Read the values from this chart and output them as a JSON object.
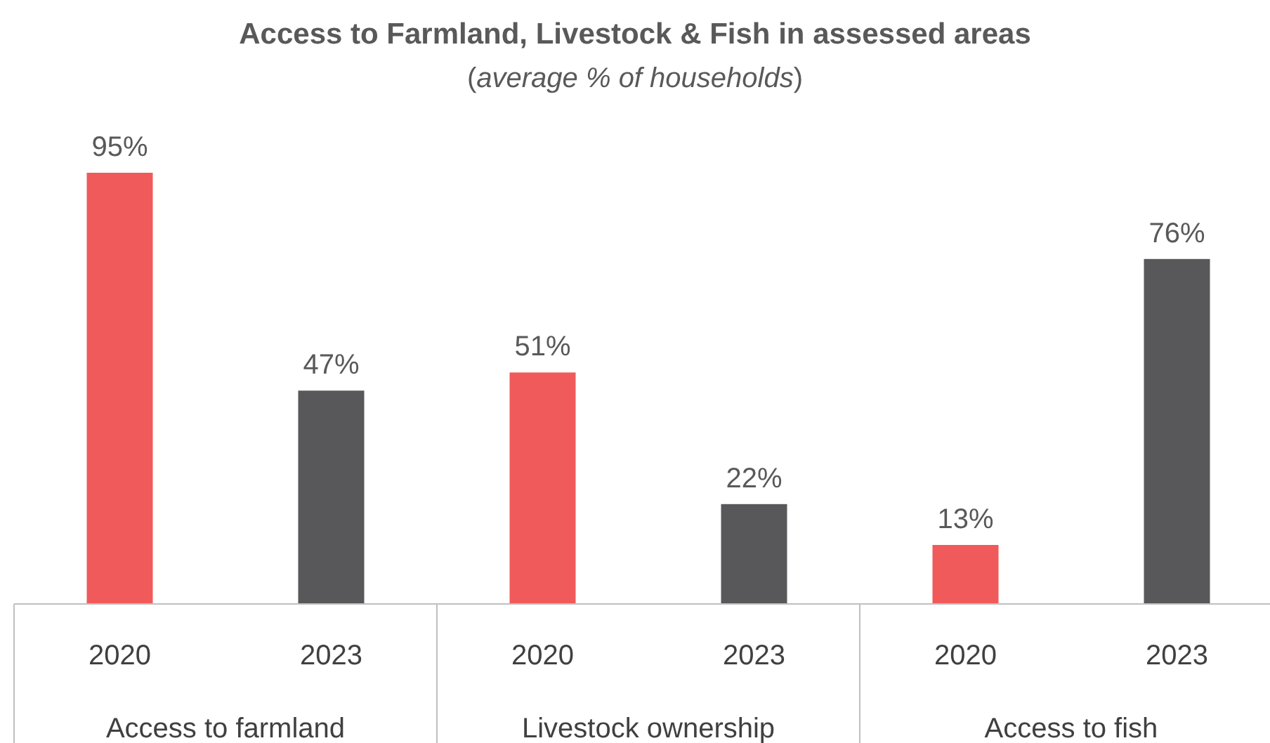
{
  "chart_data": {
    "type": "bar",
    "title": "Access to Farmland, Livestock & Fish in assessed areas",
    "subtitle": "(average % of households)",
    "categories": [
      "Access to farmland",
      "Livestock ownership",
      "Access to fish"
    ],
    "series": [
      {
        "name": "2020",
        "color": "#f05a5a",
        "values": [
          95,
          51,
          13
        ],
        "value_labels": [
          "95%",
          "51%",
          "13%"
        ]
      },
      {
        "name": "2023",
        "color": "#58585a",
        "values": [
          47,
          22,
          76
        ],
        "value_labels": [
          "47%",
          "22%",
          "76%"
        ]
      }
    ]
  }
}
